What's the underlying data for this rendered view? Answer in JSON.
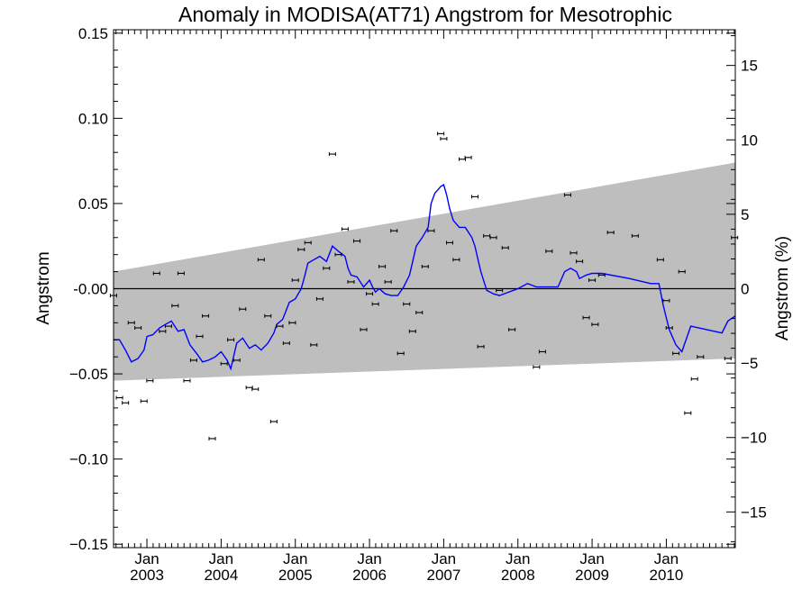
{
  "chart_data": {
    "type": "scatter",
    "title": "Anomaly in MODISA(AT71) Angstrom for Mesotrophic",
    "ylabel": "Angstrom",
    "ylabel_right": "Angstrom (%)",
    "xlim": [
      2002.55,
      2010.93
    ],
    "ylim": [
      -0.152,
      0.152
    ],
    "ylim_right": [
      -17.4,
      17.4
    ],
    "yticks": [
      {
        "value": -0.15,
        "label": "−0.15"
      },
      {
        "value": -0.1,
        "label": "−0.10"
      },
      {
        "value": -0.05,
        "label": "−0.05"
      },
      {
        "value": 0.0,
        "label": "-0.00"
      },
      {
        "value": 0.05,
        "label": "0.05"
      },
      {
        "value": 0.1,
        "label": "0.10"
      },
      {
        "value": 0.15,
        "label": "0.15"
      }
    ],
    "yticks_right": [
      {
        "value": -15,
        "label": "−15"
      },
      {
        "value": -10,
        "label": "−10"
      },
      {
        "value": -5,
        "label": "−5"
      },
      {
        "value": 0,
        "label": "0"
      },
      {
        "value": 5,
        "label": "5"
      },
      {
        "value": 10,
        "label": "10"
      },
      {
        "value": 15,
        "label": "15"
      }
    ],
    "xticks": [
      {
        "value": 2003.0,
        "month": "Jan",
        "year": "2003"
      },
      {
        "value": 2004.0,
        "month": "Jan",
        "year": "2004"
      },
      {
        "value": 2005.0,
        "month": "Jan",
        "year": "2005"
      },
      {
        "value": 2006.0,
        "month": "Jan",
        "year": "2006"
      },
      {
        "value": 2007.0,
        "month": "Jan",
        "year": "2007"
      },
      {
        "value": 2008.0,
        "month": "Jan",
        "year": "2008"
      },
      {
        "value": 2009.0,
        "month": "Jan",
        "year": "2009"
      },
      {
        "value": 2010.0,
        "month": "Jan",
        "year": "2010"
      }
    ],
    "band": {
      "color": "#bebebe",
      "lower": [
        [
          2002.55,
          -0.054
        ],
        [
          2010.93,
          -0.041
        ]
      ],
      "upper": [
        [
          2002.55,
          0.01
        ],
        [
          2010.93,
          0.074
        ]
      ]
    },
    "zero_line": 0.0,
    "series": [
      {
        "kind": "points-with-errorbars",
        "color": "#000000",
        "points": [
          [
            2002.54,
            -0.004
          ],
          [
            2002.63,
            -0.064
          ],
          [
            2002.71,
            -0.067
          ],
          [
            2002.79,
            -0.02
          ],
          [
            2002.88,
            -0.023
          ],
          [
            2002.96,
            -0.066
          ],
          [
            2003.04,
            -0.054
          ],
          [
            2003.13,
            0.009
          ],
          [
            2003.21,
            -0.025
          ],
          [
            2003.29,
            -0.022
          ],
          [
            2003.38,
            -0.01
          ],
          [
            2003.46,
            0.009
          ],
          [
            2003.54,
            -0.054
          ],
          [
            2003.63,
            -0.042
          ],
          [
            2003.71,
            -0.028
          ],
          [
            2003.79,
            -0.016
          ],
          [
            2003.88,
            -0.088
          ],
          [
            2004.04,
            -0.044
          ],
          [
            2004.13,
            -0.03
          ],
          [
            2004.21,
            -0.042
          ],
          [
            2004.29,
            -0.012
          ],
          [
            2004.38,
            -0.058
          ],
          [
            2004.46,
            -0.059
          ],
          [
            2004.54,
            0.017
          ],
          [
            2004.63,
            -0.016
          ],
          [
            2004.71,
            -0.078
          ],
          [
            2004.79,
            -0.022
          ],
          [
            2004.88,
            -0.032
          ],
          [
            2004.96,
            -0.02
          ],
          [
            2005.0,
            0.005
          ],
          [
            2005.08,
            0.023
          ],
          [
            2005.17,
            0.027
          ],
          [
            2005.25,
            -0.033
          ],
          [
            2005.33,
            -0.006
          ],
          [
            2005.42,
            0.012
          ],
          [
            2005.5,
            0.079
          ],
          [
            2005.58,
            0.02
          ],
          [
            2005.67,
            0.035
          ],
          [
            2005.75,
            0.004
          ],
          [
            2005.83,
            0.028
          ],
          [
            2005.92,
            -0.024
          ],
          [
            2006.0,
            -0.003
          ],
          [
            2006.08,
            -0.009
          ],
          [
            2006.17,
            0.013
          ],
          [
            2006.25,
            0.004
          ],
          [
            2006.33,
            0.034
          ],
          [
            2006.42,
            -0.038
          ],
          [
            2006.5,
            -0.009
          ],
          [
            2006.58,
            -0.025
          ],
          [
            2006.67,
            -0.014
          ],
          [
            2006.75,
            0.013
          ],
          [
            2006.83,
            0.034
          ],
          [
            2006.96,
            0.091
          ],
          [
            2007.0,
            0.088
          ],
          [
            2007.08,
            0.027
          ],
          [
            2007.17,
            0.017
          ],
          [
            2007.25,
            0.076
          ],
          [
            2007.33,
            0.077
          ],
          [
            2007.42,
            0.054
          ],
          [
            2007.5,
            -0.034
          ],
          [
            2007.58,
            0.031
          ],
          [
            2007.67,
            0.03
          ],
          [
            2007.75,
            -0.001
          ],
          [
            2007.83,
            0.024
          ],
          [
            2007.92,
            -0.024
          ],
          [
            2008.25,
            -0.046
          ],
          [
            2008.33,
            -0.037
          ],
          [
            2008.42,
            0.022
          ],
          [
            2008.67,
            0.055
          ],
          [
            2008.75,
            0.021
          ],
          [
            2008.83,
            0.016
          ],
          [
            2008.92,
            -0.017
          ],
          [
            2009.0,
            0.005
          ],
          [
            2009.04,
            -0.021
          ],
          [
            2009.13,
            0.008
          ],
          [
            2009.25,
            0.033
          ],
          [
            2009.58,
            0.031
          ],
          [
            2009.92,
            0.017
          ],
          [
            2010.0,
            -0.007
          ],
          [
            2010.04,
            -0.023
          ],
          [
            2010.13,
            -0.038
          ],
          [
            2010.21,
            0.01
          ],
          [
            2010.29,
            -0.073
          ],
          [
            2010.38,
            -0.053
          ],
          [
            2010.46,
            -0.04
          ],
          [
            2010.83,
            -0.041
          ],
          [
            2010.92,
            0.03
          ]
        ]
      },
      {
        "kind": "line",
        "color": "#0000ff",
        "points": [
          [
            2002.55,
            -0.03
          ],
          [
            2002.63,
            -0.03
          ],
          [
            2002.71,
            -0.036
          ],
          [
            2002.79,
            -0.043
          ],
          [
            2002.88,
            -0.041
          ],
          [
            2002.96,
            -0.036
          ],
          [
            2003.0,
            -0.028
          ],
          [
            2003.08,
            -0.027
          ],
          [
            2003.17,
            -0.023
          ],
          [
            2003.25,
            -0.021
          ],
          [
            2003.33,
            -0.019
          ],
          [
            2003.42,
            -0.025
          ],
          [
            2003.5,
            -0.024
          ],
          [
            2003.58,
            -0.033
          ],
          [
            2003.67,
            -0.038
          ],
          [
            2003.75,
            -0.043
          ],
          [
            2003.83,
            -0.042
          ],
          [
            2003.92,
            -0.04
          ],
          [
            2004.0,
            -0.037
          ],
          [
            2004.08,
            -0.042
          ],
          [
            2004.13,
            -0.047
          ],
          [
            2004.21,
            -0.032
          ],
          [
            2004.29,
            -0.029
          ],
          [
            2004.38,
            -0.035
          ],
          [
            2004.46,
            -0.033
          ],
          [
            2004.54,
            -0.036
          ],
          [
            2004.63,
            -0.032
          ],
          [
            2004.71,
            -0.026
          ],
          [
            2004.75,
            -0.021
          ],
          [
            2004.83,
            -0.018
          ],
          [
            2004.92,
            -0.008
          ],
          [
            2005.0,
            -0.006
          ],
          [
            2005.08,
            0.0
          ],
          [
            2005.13,
            0.008
          ],
          [
            2005.17,
            0.015
          ],
          [
            2005.25,
            0.017
          ],
          [
            2005.33,
            0.019
          ],
          [
            2005.42,
            0.016
          ],
          [
            2005.5,
            0.025
          ],
          [
            2005.58,
            0.022
          ],
          [
            2005.67,
            0.019
          ],
          [
            2005.71,
            0.012
          ],
          [
            2005.75,
            0.008
          ],
          [
            2005.83,
            0.007
          ],
          [
            2005.92,
            0.001
          ],
          [
            2006.0,
            0.005
          ],
          [
            2006.04,
            0.001
          ],
          [
            2006.08,
            -0.002
          ],
          [
            2006.13,
            0.0
          ],
          [
            2006.21,
            -0.003
          ],
          [
            2006.29,
            -0.004
          ],
          [
            2006.38,
            -0.004
          ],
          [
            2006.46,
            0.001
          ],
          [
            2006.54,
            0.008
          ],
          [
            2006.63,
            0.025
          ],
          [
            2006.71,
            0.03
          ],
          [
            2006.79,
            0.036
          ],
          [
            2006.83,
            0.05
          ],
          [
            2006.88,
            0.056
          ],
          [
            2006.96,
            0.06
          ],
          [
            2007.0,
            0.061
          ],
          [
            2007.04,
            0.055
          ],
          [
            2007.08,
            0.047
          ],
          [
            2007.13,
            0.04
          ],
          [
            2007.21,
            0.036
          ],
          [
            2007.29,
            0.036
          ],
          [
            2007.38,
            0.03
          ],
          [
            2007.42,
            0.025
          ],
          [
            2007.5,
            0.01
          ],
          [
            2007.58,
            -0.001
          ],
          [
            2007.67,
            -0.003
          ],
          [
            2007.75,
            -0.004
          ],
          [
            2008.0,
            0.0
          ],
          [
            2008.13,
            0.003
          ],
          [
            2008.25,
            0.001
          ],
          [
            2008.42,
            0.001
          ],
          [
            2008.54,
            0.001
          ],
          [
            2008.63,
            0.01
          ],
          [
            2008.71,
            0.012
          ],
          [
            2008.79,
            0.01
          ],
          [
            2008.83,
            0.006
          ],
          [
            2008.92,
            0.008
          ],
          [
            2009.0,
            0.009
          ],
          [
            2009.13,
            0.009
          ],
          [
            2009.5,
            0.006
          ],
          [
            2009.79,
            0.003
          ],
          [
            2009.9,
            0.003
          ],
          [
            2009.96,
            -0.01
          ],
          [
            2010.04,
            -0.024
          ],
          [
            2010.13,
            -0.033
          ],
          [
            2010.21,
            -0.037
          ],
          [
            2010.33,
            -0.022
          ],
          [
            2010.75,
            -0.026
          ],
          [
            2010.83,
            -0.019
          ],
          [
            2010.93,
            -0.016
          ]
        ]
      }
    ]
  }
}
